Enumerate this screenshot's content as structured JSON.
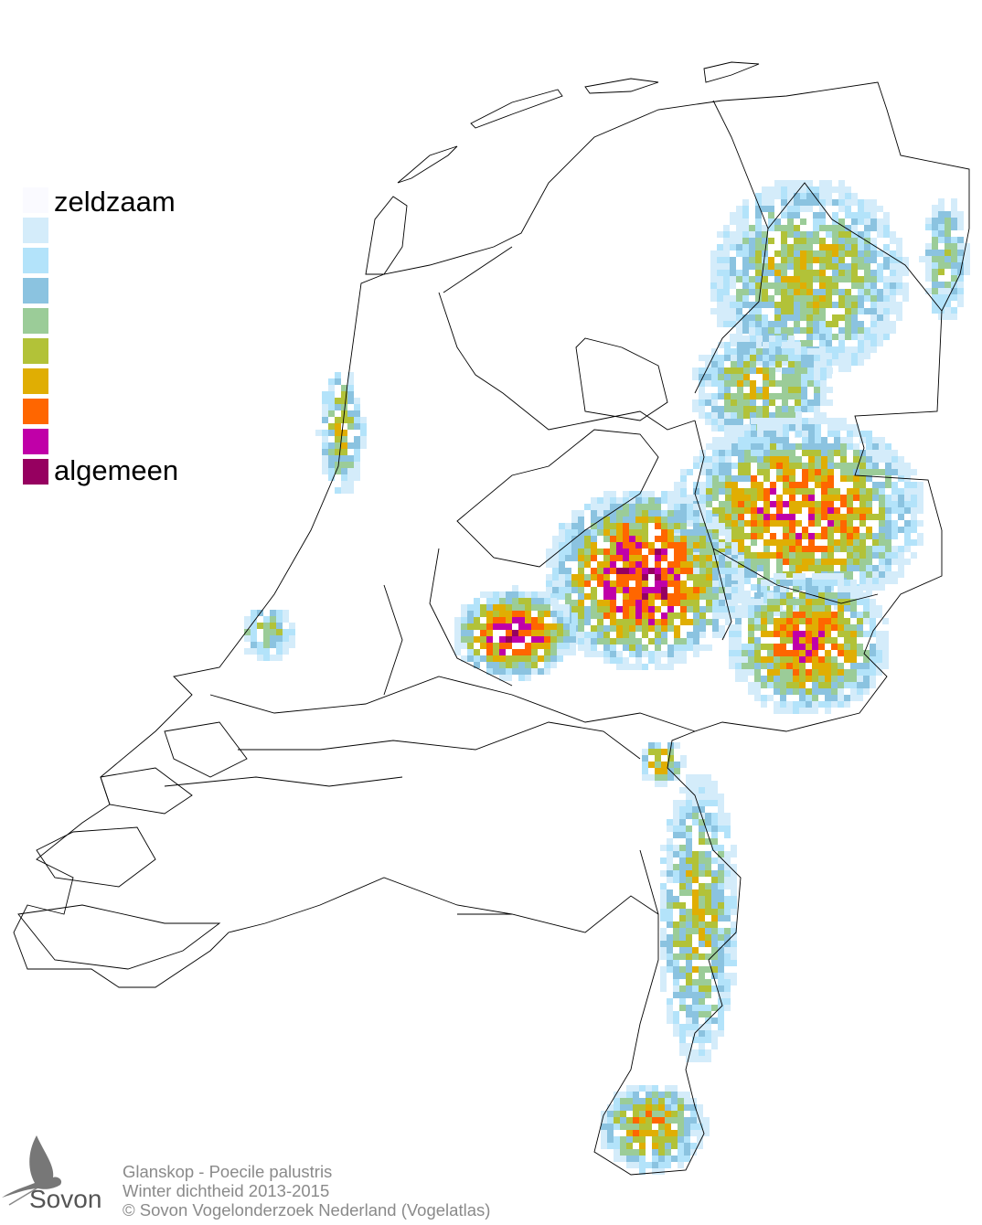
{
  "legend": {
    "top_label": "zeldzaam",
    "bottom_label": "algemeen",
    "colors": [
      "#fafaff",
      "#d4ecfa",
      "#b3e3fa",
      "#8bc3e0",
      "#9bcc98",
      "#b2c238",
      "#e0ae03",
      "#ff6600",
      "#c000a8",
      "#960060"
    ]
  },
  "credits": {
    "line1": "Glanskop - Poecile palustris",
    "line2": "Winter dichtheid 2013-2015",
    "line3": "© Sovon Vogelonderzoek Nederland (Vogelatlas)"
  },
  "logo": {
    "text": "Sovon",
    "icon": "swallow-icon"
  }
}
